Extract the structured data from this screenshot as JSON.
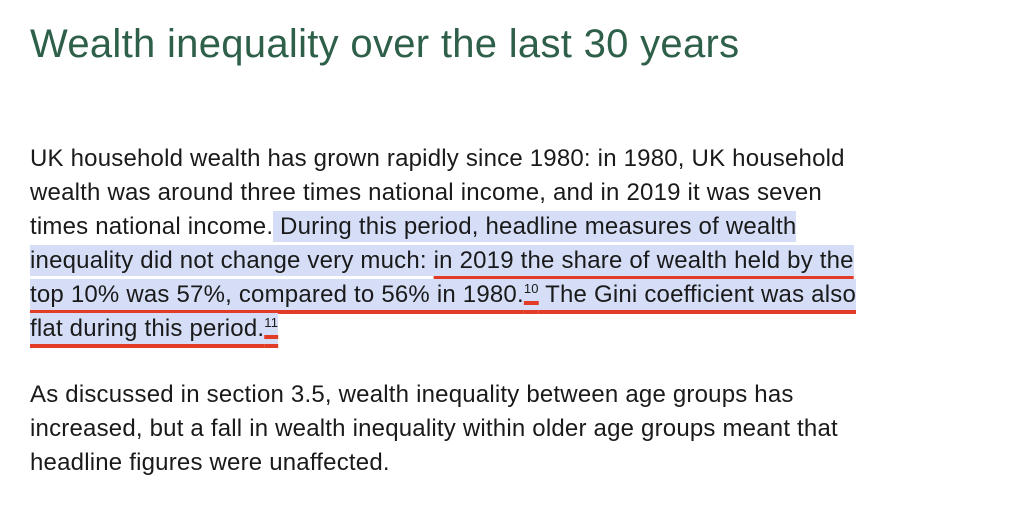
{
  "heading": "Wealth inequality over the last 30 years",
  "paragraphs": [
    {
      "lines": [
        [
          {
            "text": "UK household wealth has grown rapidly since 1980: in 1980, UK household",
            "kind": "plain"
          }
        ],
        [
          {
            "text": "wealth was around three times national income, and in 2019 it was seven",
            "kind": "plain"
          }
        ],
        [
          {
            "text": "times national income.",
            "kind": "plain"
          },
          {
            "text": " During this period, headline measures of wealth",
            "kind": "highlight"
          }
        ],
        [
          {
            "text": "inequality did not change very much: ",
            "kind": "highlight"
          },
          {
            "text": "in 2019 the share of wealth held by the",
            "kind": "marked"
          }
        ],
        [
          {
            "text": "top 10% was 57%, compared to 56% in 1980.",
            "kind": "marked"
          },
          {
            "text": "10",
            "kind": "marked",
            "sup": true
          },
          {
            "text": " The Gini coefficient was also",
            "kind": "marked"
          }
        ],
        [
          {
            "text": "flat during this period.",
            "kind": "marked"
          },
          {
            "text": "11",
            "kind": "marked",
            "sup": true
          }
        ]
      ]
    },
    {
      "lines": [
        [
          {
            "text": "As discussed in section 3.5, wealth inequality between age groups has",
            "kind": "plain"
          }
        ],
        [
          {
            "text": "increased, but a fall in wealth inequality within older age groups meant that",
            "kind": "plain"
          }
        ],
        [
          {
            "text": "headline figures were unaffected.",
            "kind": "plain"
          }
        ]
      ]
    }
  ]
}
